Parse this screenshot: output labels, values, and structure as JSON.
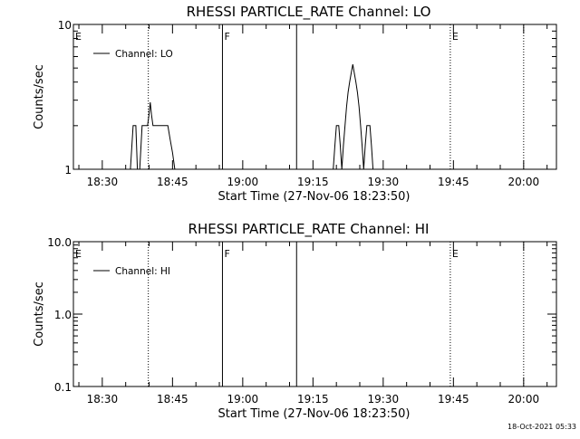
{
  "footer": {
    "timestamp": "18-Oct-2021 05:33"
  },
  "chart_data": [
    {
      "type": "line",
      "title": "RHESSI PARTICLE_RATE Channel: LO",
      "xlabel": "Start Time (27-Nov-06 18:23:50)",
      "ylabel": "Counts/sec",
      "y_scale": "log",
      "ylim": [
        1,
        10
      ],
      "y_ticks": [
        1,
        10
      ],
      "y_tick_labels": [
        "1",
        "10"
      ],
      "xlim": [
        "18:23:50",
        "20:07:00"
      ],
      "x_ticks": [
        "18:30",
        "18:45",
        "19:00",
        "19:15",
        "19:30",
        "19:45",
        "20:00"
      ],
      "grid": false,
      "legend_position": "top-left",
      "series": [
        {
          "name": "Channel: LO",
          "color": "#000000",
          "points": [
            [
              "18:36:00",
              1
            ],
            [
              "18:36:35",
              2
            ],
            [
              "18:37:10",
              2
            ],
            [
              "18:37:30",
              1
            ],
            [
              "18:38:00",
              1
            ],
            [
              "18:38:30",
              2
            ],
            [
              "18:39:10",
              2
            ],
            [
              "18:39:40",
              2
            ],
            [
              "18:40:00",
              2.4
            ],
            [
              "18:40:15",
              2.9
            ],
            [
              "18:40:30",
              2.4
            ],
            [
              "18:40:50",
              2
            ],
            [
              "18:41:30",
              2
            ],
            [
              "18:42:30",
              2
            ],
            [
              "18:43:30",
              2
            ],
            [
              "18:44:00",
              2
            ],
            [
              "18:44:30",
              1.6
            ],
            [
              "18:45:00",
              1.3
            ],
            [
              "18:45:30",
              1
            ],
            [
              "19:19:20",
              1
            ],
            [
              "19:19:40",
              1.45
            ],
            [
              "19:20:00",
              2
            ],
            [
              "19:20:30",
              2
            ],
            [
              "19:20:50",
              1.45
            ],
            [
              "19:21:10",
              1
            ],
            [
              "19:21:30",
              1.45
            ],
            [
              "19:21:50",
              2
            ],
            [
              "19:22:10",
              2.7
            ],
            [
              "19:22:30",
              3.4
            ],
            [
              "19:22:50",
              4
            ],
            [
              "19:23:10",
              4.6
            ],
            [
              "19:23:30",
              5.3
            ],
            [
              "19:23:50",
              4.6
            ],
            [
              "19:24:10",
              4
            ],
            [
              "19:24:30",
              3.4
            ],
            [
              "19:24:50",
              2.7
            ],
            [
              "19:25:10",
              2
            ],
            [
              "19:25:30",
              1.45
            ],
            [
              "19:25:50",
              1
            ],
            [
              "19:26:10",
              1.45
            ],
            [
              "19:26:30",
              2
            ],
            [
              "19:27:10",
              2
            ],
            [
              "19:27:30",
              1.45
            ],
            [
              "19:27:50",
              1
            ]
          ]
        }
      ],
      "markers": [
        {
          "label": "E",
          "time": "18:23:50",
          "style": "solid",
          "show_label": true
        },
        {
          "time": "18:39:50",
          "style": "dotted",
          "show_label": false
        },
        {
          "label": "F",
          "time": "18:55:40",
          "style": "solid",
          "show_label": true
        },
        {
          "time": "19:11:30",
          "style": "solid",
          "show_label": false
        },
        {
          "label": "E",
          "time": "19:44:20",
          "style": "dotted",
          "show_label": true
        },
        {
          "time": "20:00:00",
          "style": "dotted",
          "show_label": false
        }
      ]
    },
    {
      "type": "line",
      "title": "RHESSI PARTICLE_RATE Channel: HI",
      "xlabel": "Start Time (27-Nov-06 18:23:50)",
      "ylabel": "Counts/sec",
      "y_scale": "log",
      "ylim": [
        0.1,
        10
      ],
      "y_ticks": [
        0.1,
        1,
        10
      ],
      "y_tick_labels": [
        "0.1",
        "1.0",
        "10.0"
      ],
      "xlim": [
        "18:23:50",
        "20:07:00"
      ],
      "x_ticks": [
        "18:30",
        "18:45",
        "19:00",
        "19:15",
        "19:30",
        "19:45",
        "20:00"
      ],
      "grid": false,
      "legend_position": "top-left",
      "series": [
        {
          "name": "Channel: HI",
          "color": "#000000",
          "points": []
        }
      ],
      "markers": [
        {
          "label": "E",
          "time": "18:23:50",
          "style": "solid",
          "show_label": true
        },
        {
          "time": "18:39:50",
          "style": "dotted",
          "show_label": false
        },
        {
          "label": "F",
          "time": "18:55:40",
          "style": "solid",
          "show_label": true
        },
        {
          "time": "19:11:30",
          "style": "solid",
          "show_label": false
        },
        {
          "label": "E",
          "time": "19:44:20",
          "style": "dotted",
          "show_label": true
        },
        {
          "time": "20:00:00",
          "style": "dotted",
          "show_label": false
        }
      ]
    }
  ]
}
